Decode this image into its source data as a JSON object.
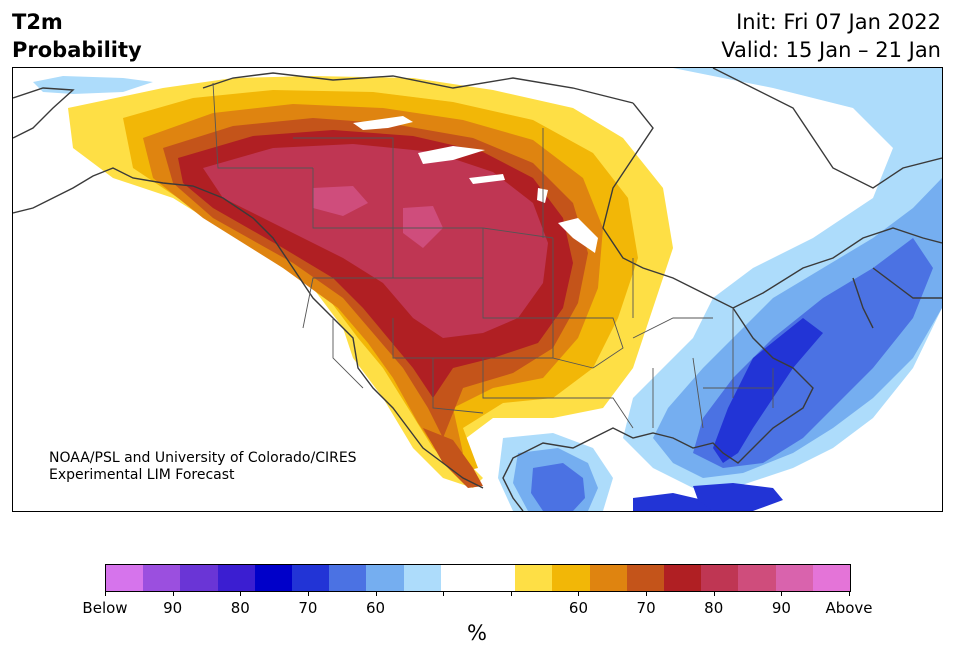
{
  "title": {
    "line1": "T2m",
    "line2": "Probability",
    "init": "Init: Fri 07 Jan 2022",
    "valid": "Valid: 15 Jan – 21 Jan"
  },
  "credit": {
    "line1": "NOAA/PSL and University of Colorado/CIRES",
    "line2": "Experimental LIM Forecast"
  },
  "colorbar": {
    "colors": [
      "#d674ec",
      "#9b4fdf",
      "#6a35d6",
      "#3b1ed1",
      "#0000c9",
      "#2234d6",
      "#4b72e3",
      "#75aef0",
      "#addcfb",
      "#ffffff",
      "#ffffff",
      "#fedf45",
      "#f2b707",
      "#df8410",
      "#c4541a",
      "#b01f23",
      "#bf3653",
      "#cf4d7c",
      "#d963ad",
      "#e474d8"
    ],
    "labels": [
      "Below",
      "90",
      "80",
      "70",
      "60",
      "",
      "",
      "60",
      "70",
      "80",
      "90",
      "Above"
    ],
    "unit": "%"
  },
  "palette": {
    "cold": [
      "#addcfb",
      "#75aef0",
      "#4b72e3",
      "#2234d6"
    ],
    "warm": [
      "#fedf45",
      "#f2b707",
      "#df8410",
      "#c4541a",
      "#b01f23",
      "#bf3653",
      "#cf4d7c"
    ],
    "coast": "#3a3a3a"
  }
}
